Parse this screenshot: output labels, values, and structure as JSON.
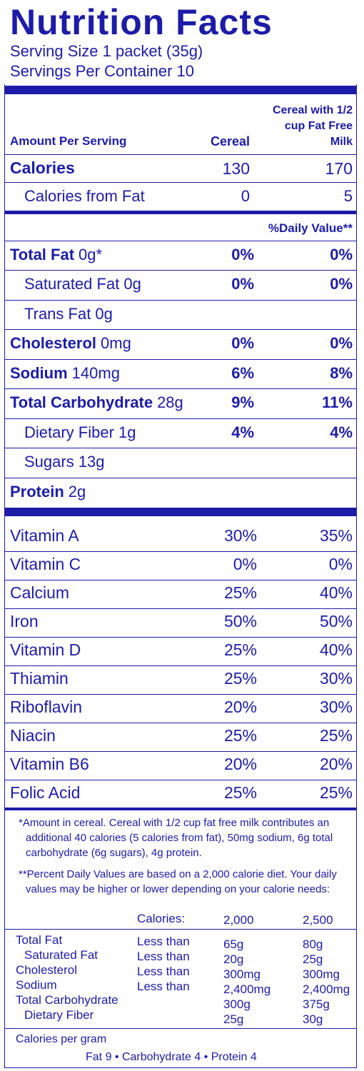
{
  "title": "Nutrition Facts",
  "serving_size": "Serving Size 1 packet (35g)",
  "servings_per_container": "Servings Per Container 10",
  "header": {
    "amount_per_serving": "Amount Per Serving",
    "cereal": "Cereal",
    "with_milk": "Cereal with 1/2 cup Fat Free Milk"
  },
  "calories": {
    "label": "Calories",
    "cereal": "130",
    "with_milk": "170"
  },
  "calories_from_fat": {
    "label": "Calories from Fat",
    "cereal": "0",
    "with_milk": "5"
  },
  "daily_value_header": "%Daily Value**",
  "nutrients": [
    {
      "name": "Total Fat",
      "amount": "0g*",
      "cereal": "0%",
      "with_milk": "0%"
    },
    {
      "sub": "Saturated Fat 0g",
      "cereal": "0%",
      "with_milk": "0%"
    },
    {
      "sub": "Trans Fat 0g"
    },
    {
      "name": "Cholesterol",
      "amount": "0mg",
      "cereal": "0%",
      "with_milk": "0%"
    },
    {
      "name": "Sodium",
      "amount": "140mg",
      "cereal": "6%",
      "with_milk": "8%"
    },
    {
      "name": "Total Carbohydrate",
      "amount": "28g",
      "cereal": "9%",
      "with_milk": "11%"
    },
    {
      "sub": "Dietary Fiber 1g",
      "cereal": "4%",
      "with_milk": "4%"
    },
    {
      "sub": "Sugars 13g"
    },
    {
      "name": "Protein",
      "amount": "2g"
    }
  ],
  "vitamins": [
    {
      "name": "Vitamin A",
      "cereal": "30%",
      "with_milk": "35%"
    },
    {
      "name": "Vitamin C",
      "cereal": "0%",
      "with_milk": "0%"
    },
    {
      "name": "Calcium",
      "cereal": "25%",
      "with_milk": "40%"
    },
    {
      "name": "Iron",
      "cereal": "50%",
      "with_milk": "50%"
    },
    {
      "name": "Vitamin D",
      "cereal": "25%",
      "with_milk": "40%"
    },
    {
      "name": "Thiamin",
      "cereal": "25%",
      "with_milk": "30%"
    },
    {
      "name": "Riboflavin",
      "cereal": "20%",
      "with_milk": "30%"
    },
    {
      "name": "Niacin",
      "cereal": "25%",
      "with_milk": "25%"
    },
    {
      "name": "Vitamin B6",
      "cereal": "20%",
      "with_milk": "20%"
    },
    {
      "name": "Folic Acid",
      "cereal": "25%",
      "with_milk": "25%"
    }
  ],
  "footnotes": [
    "*Amount in cereal. Cereal with 1/2 cup fat free milk contributes an additional 40 calories (5 calories from fat), 50mg sodium, 6g total carbohydrate (6g sugars), 4g protein.",
    "**Percent Daily Values are based on a 2,000 calorie diet. Your daily values may be higher or lower depending on your calorie needs:"
  ],
  "daily_table": {
    "header": {
      "label": "Calories:",
      "col1": "2,000",
      "col2": "2,500"
    },
    "rows": [
      {
        "name": "Total Fat",
        "qualifier": "Less than",
        "col1": "65g",
        "col2": "80g"
      },
      {
        "sub": "Saturated Fat",
        "qualifier": "Less than",
        "col1": "20g",
        "col2": "25g"
      },
      {
        "name": "Cholesterol",
        "qualifier": "Less than",
        "col1": "300mg",
        "col2": "300mg"
      },
      {
        "name": "Sodium",
        "qualifier": "Less than",
        "col1": "2,400mg",
        "col2": "2,400mg"
      },
      {
        "name": "Total Carbohydrate",
        "col1": "300g",
        "col2": "375g"
      },
      {
        "sub": "Dietary Fiber",
        "col1": "25g",
        "col2": "30g"
      }
    ]
  },
  "calories_per_gram": {
    "label": "Calories per gram",
    "values": "Fat 9 • Carbohydrate 4 • Protein 4"
  }
}
